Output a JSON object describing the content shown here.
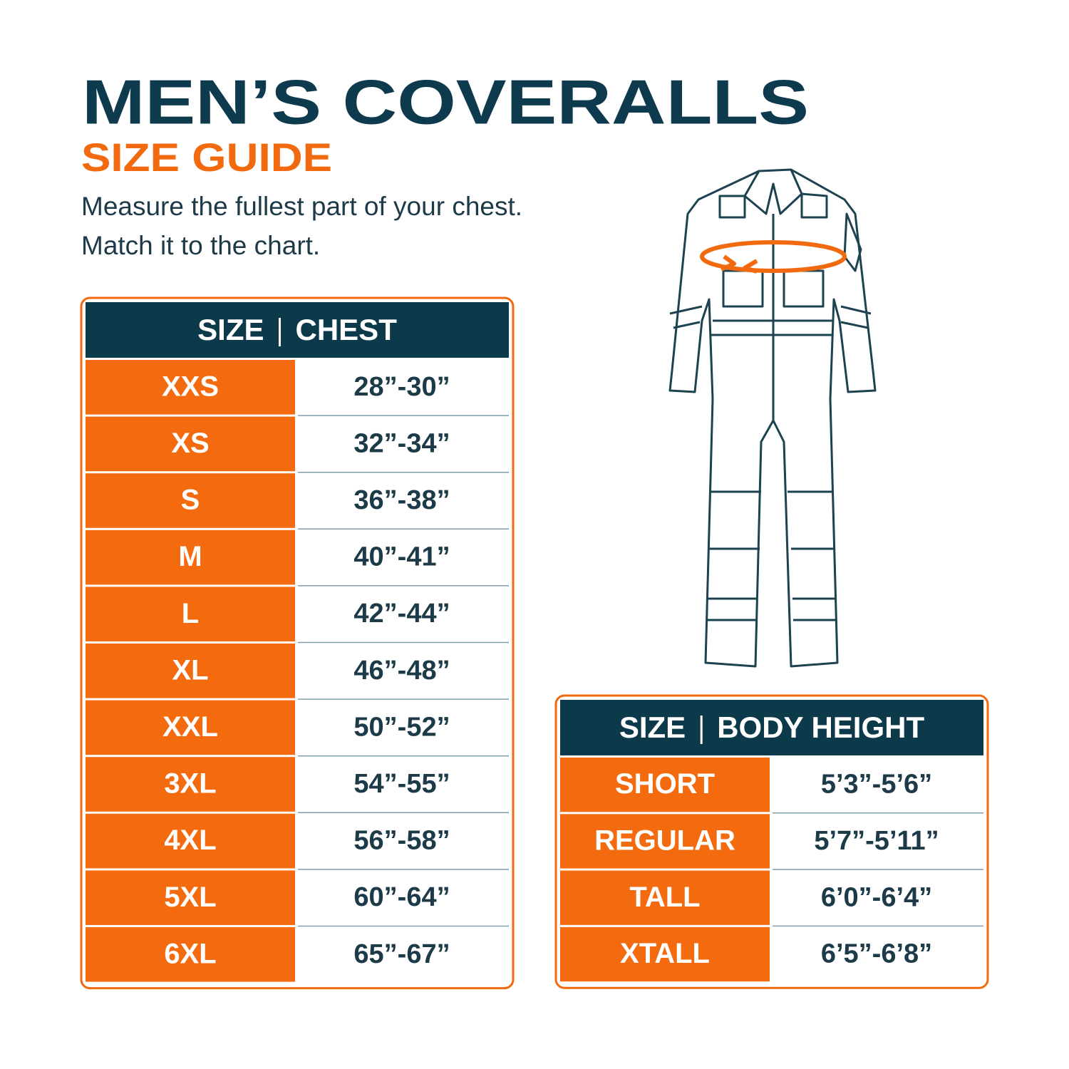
{
  "header": {
    "title": "MEN’S COVERALLS",
    "subtitle": "SIZE GUIDE",
    "instructions": [
      "Measure the fullest part of your chest.",
      "Match it to the chart."
    ]
  },
  "chest_table": {
    "columns": [
      "SIZE",
      "CHEST"
    ],
    "rows": [
      [
        "XXS",
        "28”-30”"
      ],
      [
        "XS",
        "32”-34”"
      ],
      [
        "S",
        "36”-38”"
      ],
      [
        "M",
        "40”-41”"
      ],
      [
        "L",
        "42”-44”"
      ],
      [
        "XL",
        "46”-48”"
      ],
      [
        "XXL",
        "50”-52”"
      ],
      [
        "3XL",
        "54”-55”"
      ],
      [
        "4XL",
        "56”-58”"
      ],
      [
        "5XL",
        "60”-64”"
      ],
      [
        "6XL",
        "65”-67”"
      ]
    ]
  },
  "height_table": {
    "columns": [
      "SIZE",
      "BODY HEIGHT"
    ],
    "rows": [
      [
        "SHORT",
        "5’3”-5’6”"
      ],
      [
        "REGULAR",
        "5’7”-5’11”"
      ],
      [
        "TALL",
        "6’0”-6’4”"
      ],
      [
        "XTALL",
        "6’5”-6’8”"
      ]
    ]
  }
}
